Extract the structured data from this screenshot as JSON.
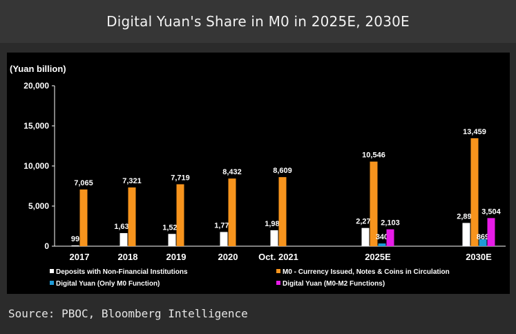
{
  "header": {
    "title": "Digital Yuan's Share in M0 in 2025E, 2030E"
  },
  "source": "Source: PBOC, Bloomberg Intelligence",
  "chart_data": {
    "type": "bar",
    "title": "Digital Yuan's Share in M0 in 2025E, 2030E",
    "ylabel": "(Yuan billion)",
    "xlabel": "",
    "ylim": [
      0,
      20000
    ],
    "yticks": [
      0,
      5000,
      10000,
      15000,
      20000
    ],
    "ytick_labels": [
      "0",
      "5,000",
      "10,000",
      "15,000",
      "20,000"
    ],
    "grid": false,
    "legend_position": "bottom",
    "categories": [
      "2017",
      "2018",
      "2019",
      "2020",
      "Oct. 2021",
      "2025E",
      "2030E"
    ],
    "series": [
      {
        "name": "Deposits with Non-Financial Institutions",
        "color": "#ffffff",
        "values": [
          99,
          1630,
          1529,
          1770,
          1983,
          2270,
          2897
        ],
        "labels": [
          "99",
          "1,630",
          "1,529",
          "1,770",
          "1,983",
          "2,270",
          "2,897"
        ]
      },
      {
        "name": "M0 - Currency Issued, Notes & Coins in Circulation",
        "color": "#f7941d",
        "values": [
          7065,
          7321,
          7719,
          8432,
          8609,
          10546,
          13459
        ],
        "labels": [
          "7,065",
          "7,321",
          "7,719",
          "8,432",
          "8,609",
          "10,546",
          "13,459"
        ]
      },
      {
        "name": "Digital Yuan (Only M0 Function)",
        "color": "#1f9bd7",
        "values": [
          null,
          null,
          null,
          null,
          null,
          340,
          869
        ],
        "labels": [
          "",
          "",
          "",
          "",
          "",
          "340",
          "869"
        ]
      },
      {
        "name": "Digital Yuan (M0-M2 Functions)",
        "color": "#e81ce8",
        "values": [
          null,
          null,
          null,
          null,
          null,
          2103,
          3504
        ],
        "labels": [
          "",
          "",
          "",
          "",
          "",
          "2,103",
          "3,504"
        ]
      }
    ]
  }
}
